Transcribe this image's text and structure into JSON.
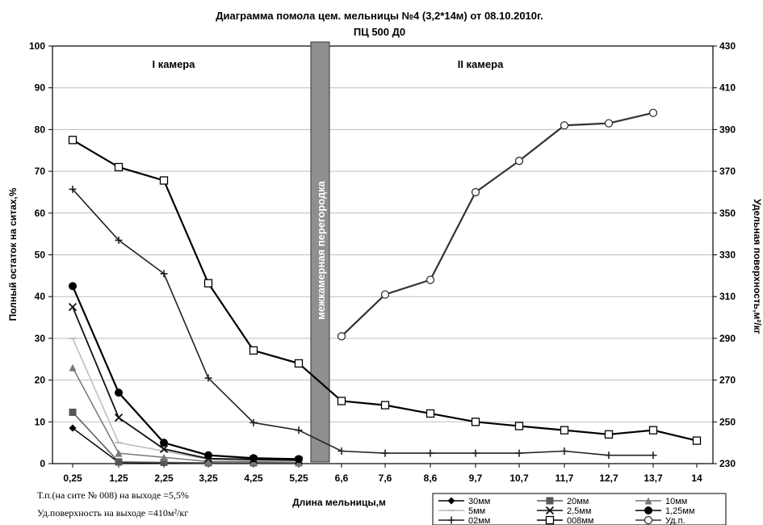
{
  "chart_data": {
    "type": "line",
    "title": "Диаграмма помола цем. мельницы №4  (3,2*14м) от 08.10.2010г.",
    "subtitle": "ПЦ 500 Д0",
    "xlabel": "Длина мельницы,м",
    "ylabel": "Полный остаток на ситах,%",
    "y2label": "Удельная поверхность,м²/кг",
    "categories": [
      "0,25",
      "1,25",
      "2,25",
      "3,25",
      "4,25",
      "5,25",
      "6,6",
      "7,6",
      "8,6",
      "9,7",
      "10,7",
      "11,7",
      "12,7",
      "13,7",
      "14"
    ],
    "ylim": [
      0,
      100
    ],
    "yticks": [
      "0",
      "10",
      "20",
      "30",
      "40",
      "50",
      "60",
      "70",
      "80",
      "90",
      "100"
    ],
    "y2lim": [
      230,
      430
    ],
    "y2ticks": [
      "230",
      "250",
      "270",
      "290",
      "310",
      "330",
      "350",
      "370",
      "390",
      "410",
      "430"
    ],
    "grid": "horizontal",
    "legend_position": "bottom-right",
    "camera_labels": [
      "I камера",
      "II камера"
    ],
    "partition_label": "межкамерная перегородка",
    "notes": [
      "Т.п.(на сите № 008) на выходе =5,5%",
      "Уд.поверхность на выходе =410м²/кг"
    ],
    "series": [
      {
        "name": "30мм",
        "marker": "diamond",
        "color": "#000000",
        "axis": "left",
        "values": [
          8.5,
          0.3,
          0.2,
          0.1,
          0.1,
          0.1,
          null,
          null,
          null,
          null,
          null,
          null,
          null,
          null,
          null
        ]
      },
      {
        "name": "20мм",
        "marker": "square",
        "color": "#555555",
        "axis": "left",
        "values": [
          12.3,
          0.4,
          0.3,
          0.2,
          0.2,
          0.2,
          null,
          null,
          null,
          null,
          null,
          null,
          null,
          null,
          null
        ]
      },
      {
        "name": "10мм",
        "marker": "triangle",
        "color": "#777777",
        "axis": "left",
        "values": [
          23,
          2.5,
          1.5,
          0.5,
          0.5,
          0.3,
          null,
          null,
          null,
          null,
          null,
          null,
          null,
          null,
          null
        ]
      },
      {
        "name": "5мм",
        "marker": "dash",
        "color": "#bbbbbb",
        "axis": "left",
        "values": [
          30,
          5,
          3,
          1,
          0.8,
          0.5,
          null,
          null,
          null,
          null,
          null,
          null,
          null,
          null,
          null
        ]
      },
      {
        "name": "2,5мм",
        "marker": "x",
        "color": "#111111",
        "axis": "left",
        "values": [
          37.5,
          11,
          3.5,
          1.2,
          1,
          0.8,
          null,
          null,
          null,
          null,
          null,
          null,
          null,
          null,
          null
        ]
      },
      {
        "name": "1,25мм",
        "marker": "circle",
        "color": "#000000",
        "axis": "left",
        "values": [
          42.5,
          17,
          5,
          2,
          1.3,
          1.1,
          null,
          null,
          null,
          null,
          null,
          null,
          null,
          null,
          null
        ]
      },
      {
        "name": "02мм",
        "marker": "plus",
        "color": "#222222",
        "axis": "left",
        "values": [
          65.7,
          53.5,
          45.5,
          20.5,
          9.8,
          8,
          3,
          2.5,
          2.5,
          2.5,
          2.5,
          3,
          2,
          2,
          null
        ]
      },
      {
        "name": "008мм",
        "marker": "open-square",
        "color": "#000000",
        "axis": "left",
        "values": [
          77.5,
          71,
          67.8,
          43.2,
          27.1,
          24,
          15,
          14,
          12,
          10,
          9,
          8,
          7,
          8,
          5.5
        ]
      },
      {
        "name": "Уд.п.",
        "marker": "open-circle",
        "color": "#333333",
        "axis": "right",
        "values": [
          null,
          null,
          null,
          null,
          null,
          null,
          291,
          311,
          318,
          360,
          375,
          392,
          393,
          398,
          null
        ]
      }
    ]
  }
}
